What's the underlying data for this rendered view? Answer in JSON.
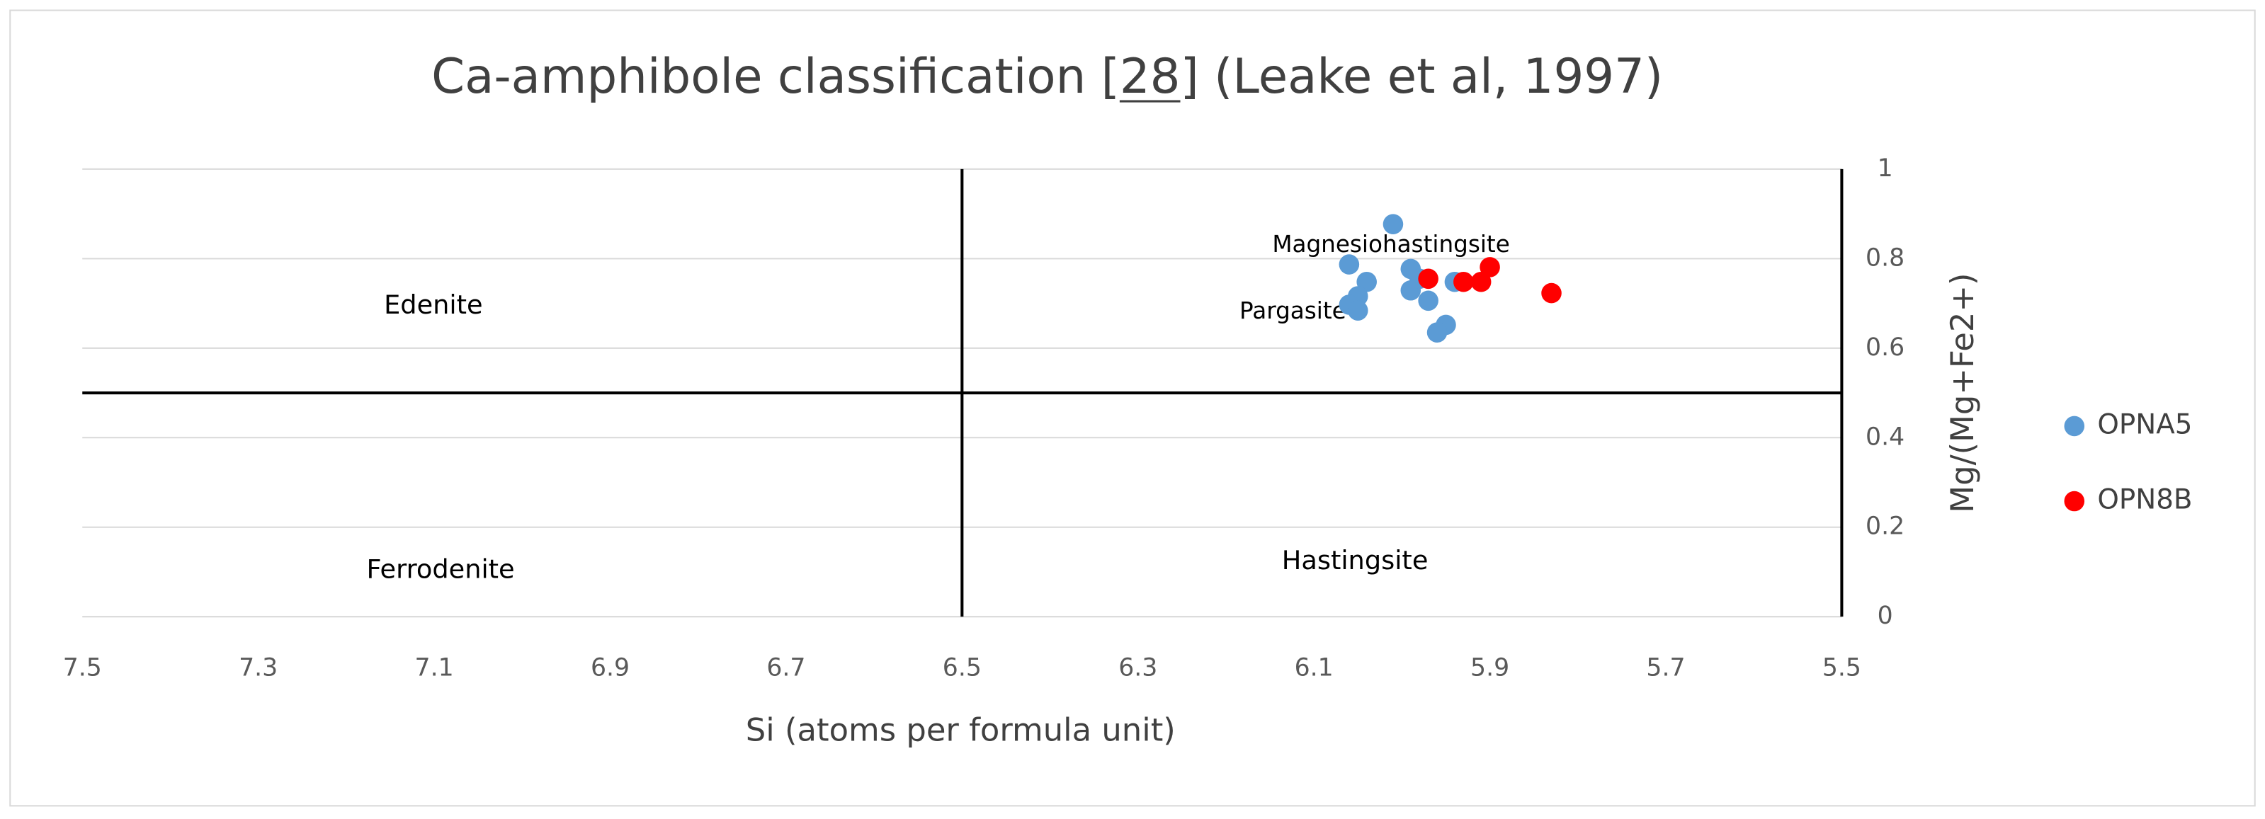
{
  "chart_data": {
    "type": "scatter",
    "title": "Ca-amphibole classification [28] (Leake et al, 1997)",
    "x_label": "Si (atoms per formula unit)",
    "y_label": "Mg/(Mg+Fe2+)",
    "xlim": [
      7.5,
      5.5
    ],
    "ylim": [
      0,
      1
    ],
    "xticks": [
      7.5,
      7.3,
      7.1,
      6.9,
      6.7,
      6.5,
      6.3,
      6.1,
      5.9,
      5.7,
      5.5
    ],
    "yticks": [
      0,
      0.2,
      0.4,
      0.6,
      0.8,
      1
    ],
    "grid": true,
    "y_axis_side": "right",
    "legend": "right",
    "dividers": {
      "x": 6.5,
      "y": 0.5
    },
    "annotations": [
      "Edenite",
      "Ferrodenite",
      "Magnesiohastingsite",
      "Pargasite",
      "Hastingsite"
    ],
    "series": [
      {
        "name": "OPNA5",
        "color": "#5b9bd5",
        "x": [
          6.01,
          6.06,
          6.04,
          5.99,
          5.99,
          5.97,
          6.05,
          6.06,
          6.05,
          5.98,
          5.95,
          5.96,
          5.94
        ],
        "values": [
          0.877,
          0.787,
          0.748,
          0.777,
          0.729,
          0.706,
          0.716,
          0.697,
          0.684,
          0.755,
          0.652,
          0.635,
          0.748
        ]
      },
      {
        "name": "OPN8B",
        "color": "#ff0000",
        "x": [
          5.97,
          5.93,
          5.91,
          5.9,
          5.83
        ],
        "values": [
          0.755,
          0.748,
          0.748,
          0.781,
          0.723
        ]
      }
    ]
  }
}
